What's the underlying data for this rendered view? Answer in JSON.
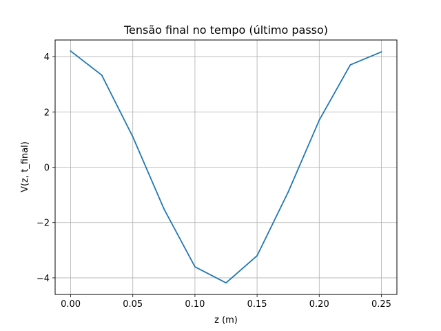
{
  "chart_data": {
    "type": "line",
    "title": "Tensão final no tempo (último passo)",
    "xlabel": "z (m)",
    "ylabel": "V(z, t_final)",
    "xlim": [
      -0.0125,
      0.2625
    ],
    "ylim": [
      -4.6,
      4.6
    ],
    "xticks": [
      0.0,
      0.05,
      0.1,
      0.15,
      0.2,
      0.25
    ],
    "xtick_labels": [
      "0.00",
      "0.05",
      "0.10",
      "0.15",
      "0.20",
      "0.25"
    ],
    "yticks": [
      -4,
      -2,
      0,
      2,
      4
    ],
    "ytick_labels": [
      "−4",
      "−2",
      "0",
      "2",
      "4"
    ],
    "grid": true,
    "series": [
      {
        "color": "#1f77b4",
        "x": [
          0.0,
          0.025,
          0.05,
          0.075,
          0.1,
          0.125,
          0.15,
          0.175,
          0.2,
          0.225,
          0.25
        ],
        "y": [
          4.2,
          3.33,
          1.1,
          -1.5,
          -3.6,
          -4.18,
          -3.2,
          -0.9,
          1.7,
          3.7,
          4.17
        ]
      }
    ]
  }
}
